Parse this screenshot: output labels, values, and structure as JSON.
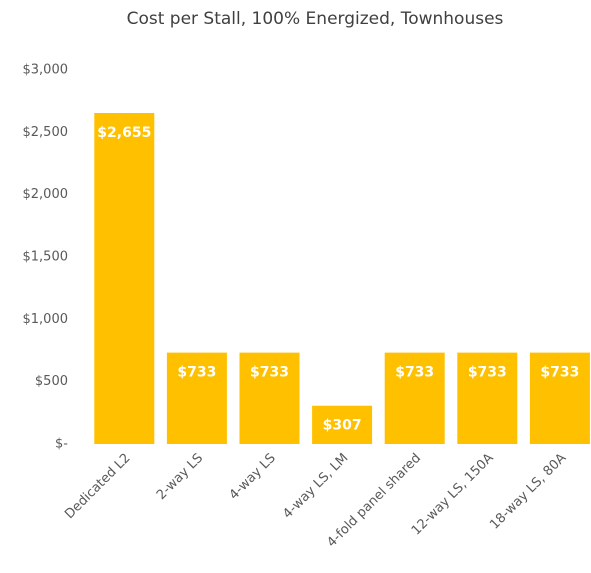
{
  "chart_data": {
    "type": "bar",
    "title": "Cost per Stall, 100% Energized, Townhouses",
    "categories": [
      "Dedicated L2",
      "2-way LS",
      "4-way LS",
      "4-way LS, LM",
      "4-fold panel shared",
      "12-way LS, 150A",
      "18-way LS, 80A"
    ],
    "values": [
      2655,
      733,
      733,
      307,
      733,
      733,
      733
    ],
    "value_labels": [
      "$2,655",
      "$733",
      "$733",
      "$307",
      "$733",
      "$733",
      "$733"
    ],
    "color": "#ffc000",
    "ylim": [
      0,
      3000
    ],
    "yticks": [
      {
        "value": 0,
        "label": "$-"
      },
      {
        "value": 500,
        "label": "$500"
      },
      {
        "value": 1000,
        "label": "$1,000"
      },
      {
        "value": 1500,
        "label": "$1,500"
      },
      {
        "value": 2000,
        "label": "$2,000"
      },
      {
        "value": 2500,
        "label": "$2,500"
      },
      {
        "value": 3000,
        "label": "$3,000"
      }
    ],
    "grid": false
  }
}
